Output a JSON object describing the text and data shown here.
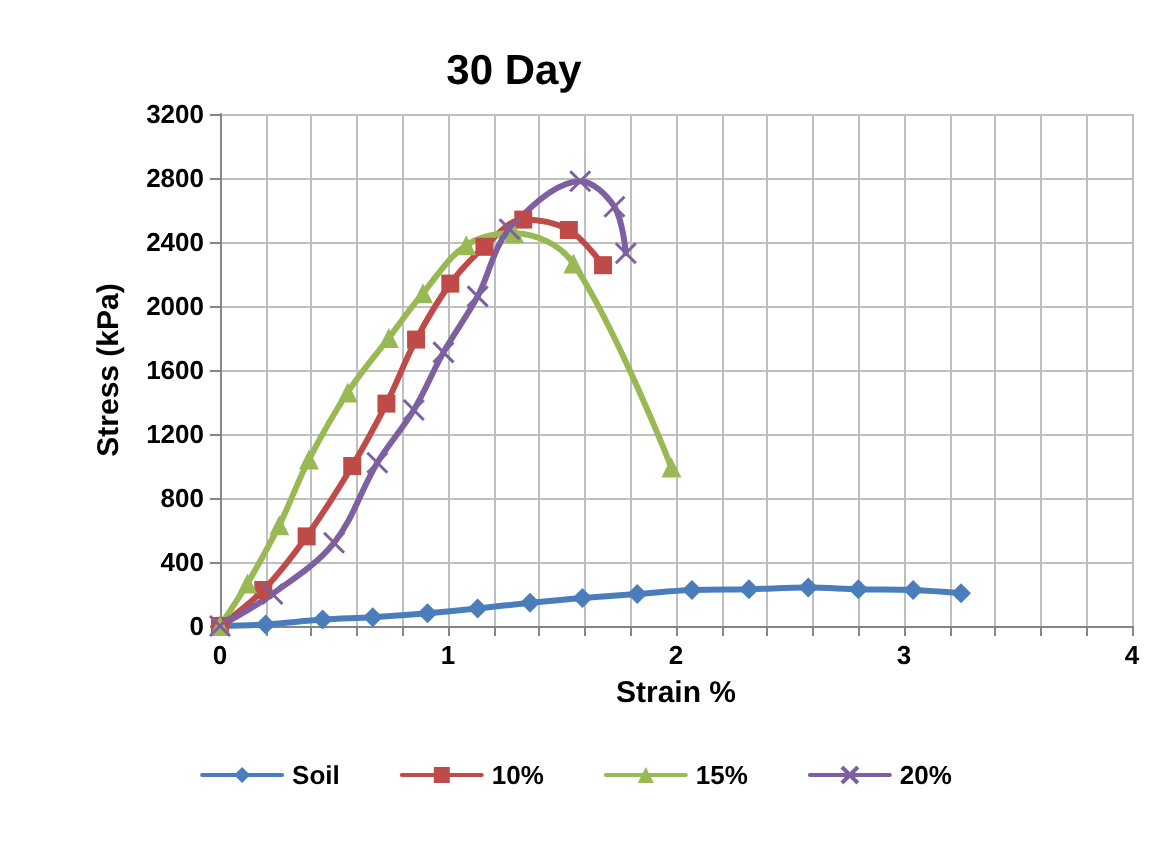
{
  "chart_data": {
    "type": "line",
    "title": "30 Day",
    "xlabel": "Strain %",
    "ylabel": "Stress (kPa)",
    "xlim": [
      0,
      4
    ],
    "xticks": [
      0,
      {
        "value": 0.2,
        "label": null
      },
      {
        "value": 0.4,
        "label": null
      },
      {
        "value": 0.6,
        "label": null
      },
      {
        "value": 0.8,
        "label": null
      },
      1,
      {
        "value": 1.2,
        "label": null
      },
      {
        "value": 1.4,
        "label": null
      },
      {
        "value": 1.6,
        "label": null
      },
      {
        "value": 1.8,
        "label": null
      },
      2,
      {
        "value": 2.2,
        "label": null
      },
      {
        "value": 2.4,
        "label": null
      },
      {
        "value": 2.6,
        "label": null
      },
      {
        "value": 2.8,
        "label": null
      },
      3,
      {
        "value": 3.2,
        "label": null
      },
      {
        "value": 3.4,
        "label": null
      },
      {
        "value": 3.6,
        "label": null
      },
      {
        "value": 3.8,
        "label": null
      },
      4
    ],
    "ylim": [
      0,
      3200
    ],
    "yticks": [
      0,
      400,
      800,
      1200,
      1600,
      2000,
      2400,
      2800,
      3200
    ],
    "grid": true,
    "legend": "bottom",
    "series": [
      {
        "name": "Soil",
        "color": "#4a7ebb",
        "marker": "diamond",
        "x": [
          0,
          0.2,
          0.45,
          0.67,
          0.91,
          1.13,
          1.36,
          1.59,
          1.83,
          2.07,
          2.32,
          2.58,
          2.8,
          3.04,
          3.25
        ],
        "values": [
          0,
          10,
          40,
          55,
          80,
          110,
          145,
          175,
          200,
          225,
          230,
          240,
          230,
          225,
          205
        ]
      },
      {
        "name": "10%",
        "color": "#be4b48",
        "marker": "square",
        "x": [
          0,
          0.19,
          0.38,
          0.58,
          0.73,
          0.86,
          1.01,
          1.16,
          1.33,
          1.53,
          1.68
        ],
        "values": [
          0,
          225,
          560,
          1000,
          1390,
          1790,
          2140,
          2370,
          2540,
          2475,
          2255
        ]
      },
      {
        "name": "15%",
        "color": "#98b954",
        "marker": "triangle",
        "x": [
          0,
          0.12,
          0.26,
          0.39,
          0.56,
          0.74,
          0.89,
          1.08,
          1.29,
          1.55,
          1.98
        ],
        "values": [
          0,
          265,
          630,
          1040,
          1460,
          1800,
          2080,
          2380,
          2455,
          2265,
          990
        ]
      },
      {
        "name": "20%",
        "color": "#7d60a0",
        "marker": "cross",
        "x": [
          0,
          0.23,
          0.5,
          0.69,
          0.85,
          0.98,
          1.13,
          1.27,
          1.58,
          1.73,
          1.78
        ],
        "values": [
          0,
          200,
          520,
          1020,
          1350,
          1710,
          2060,
          2480,
          2780,
          2620,
          2330
        ]
      }
    ]
  }
}
